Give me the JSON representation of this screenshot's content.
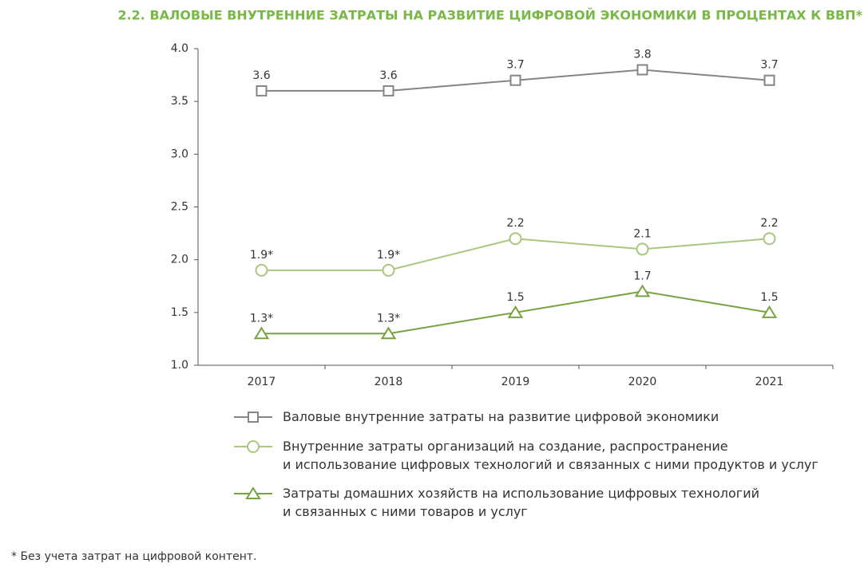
{
  "chart_data": {
    "type": "line",
    "title": "2.2. ВАЛОВЫЕ ВНУТРЕННИЕ ЗАТРАТЫ НА РАЗВИТИЕ ЦИФРОВОЙ ЭКОНОМИКИ В ПРОЦЕНТАХ К ВВП*",
    "categories": [
      "2017",
      "2018",
      "2019",
      "2020",
      "2021"
    ],
    "series": [
      {
        "name": "Валовые внутренние затраты на развитие цифровой экономики",
        "color": "#858585",
        "marker": "square",
        "values": [
          3.6,
          3.6,
          3.7,
          3.8,
          3.7
        ]
      },
      {
        "name": "Внутренние затраты организаций на создание, распространение\nи использование цифровых технологий и связанных с ними продуктов и услуг",
        "color": "#a9c77f",
        "marker": "circle",
        "values": [
          1.9,
          1.9,
          2.2,
          2.1,
          2.2
        ],
        "value_labels": [
          "1.9*",
          "1.9*",
          "2.2",
          "2.1",
          "2.2"
        ]
      },
      {
        "name": "Затраты домашних хозяйств на использование цифровых технологий\nи связанных с ними товаров и услуг",
        "color": "#78a342",
        "marker": "triangle",
        "values": [
          1.3,
          1.3,
          1.5,
          1.7,
          1.5
        ],
        "value_labels": [
          "1.3*",
          "1.3*",
          "1.5",
          "1.7",
          "1.5"
        ]
      }
    ],
    "ylim": [
      1.0,
      4.0
    ],
    "yticks": [
      {
        "value": 1,
        "label": "1.0"
      },
      1.5,
      {
        "value": 2,
        "label": "2.0"
      },
      2.5,
      {
        "value": 3,
        "label": "3.0"
      },
      3.5,
      {
        "value": 4,
        "label": "4.0"
      }
    ],
    "grid": false,
    "footnote": "* Без учета затрат на цифровой контент."
  }
}
